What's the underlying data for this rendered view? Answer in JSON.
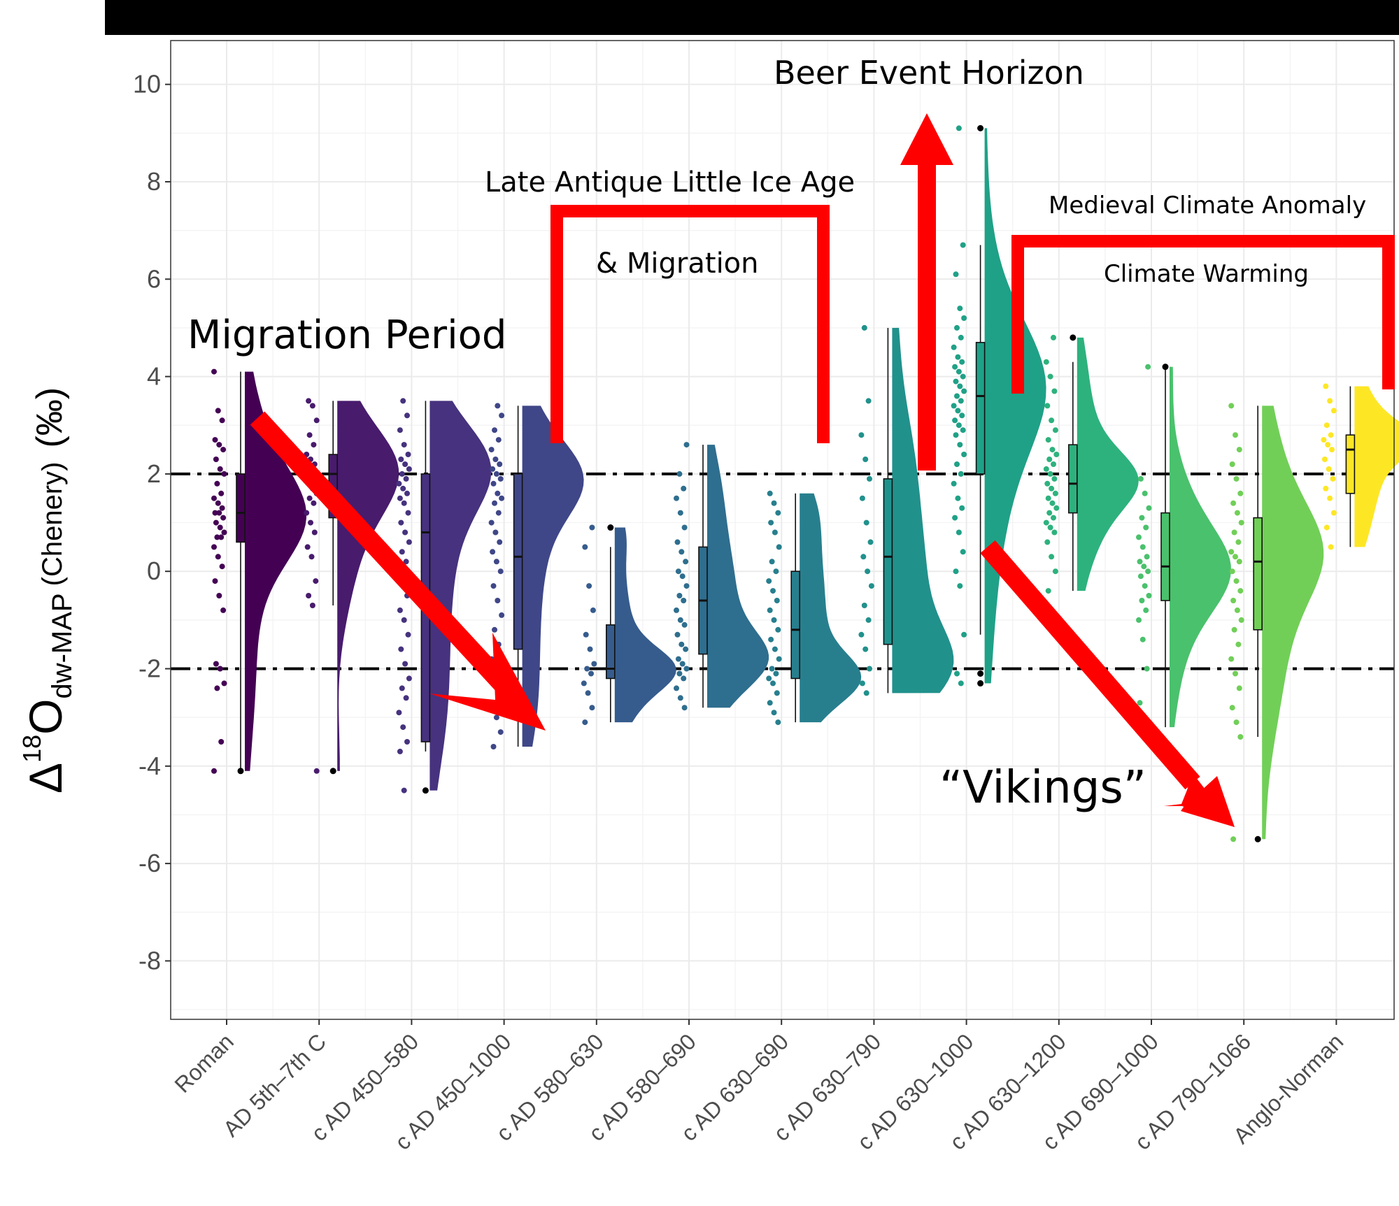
{
  "chart_data": {
    "type": "raincloud",
    "ylabel": {
      "prefix": "Δ",
      "superscript": "18",
      "main": "O",
      "subscript": "dw-MAP",
      "suffix": "(Chenery)",
      "unit": "(‰)"
    },
    "ylim": [
      -9.2,
      10.9
    ],
    "yticks": [
      10,
      8,
      6,
      4,
      2,
      0,
      -2,
      -4,
      -6,
      -8
    ],
    "ytick_labels": [
      "10",
      "8",
      "6",
      "4",
      "2",
      "0",
      "-2",
      "-4",
      "-6",
      "-8"
    ],
    "reference_lines": [
      2,
      -2
    ],
    "categories": [
      "Roman",
      "AD 5th–7th C",
      "c AD 450–580",
      "c AD 450–1000",
      "c AD 580–630",
      "c AD 580–690",
      "c AD 630–690",
      "c AD 630–790",
      "c AD 630–1000",
      "c AD 630–1200",
      "c AD 690–1000",
      "c AD 790–1066",
      "Anglo-Norman"
    ],
    "colors": [
      "#440154",
      "#481b6d",
      "#46327e",
      "#3f4788",
      "#365c8d",
      "#2e6e8e",
      "#277f8e",
      "#21918c",
      "#1fa187",
      "#2db27d",
      "#4ac16d",
      "#71cf57",
      "#fde725"
    ],
    "series": [
      {
        "name": "Roman",
        "min": -4.1,
        "q1": 0.6,
        "median": 1.2,
        "q3": 2.0,
        "max": 4.1,
        "mode": 1.1,
        "outliers": [
          -4.1
        ],
        "points": [
          4.1,
          3.3,
          3.1,
          2.7,
          2.6,
          2.5,
          2.3,
          2.1,
          2.0,
          1.8,
          1.6,
          1.5,
          1.4,
          1.3,
          1.2,
          1.2,
          1.1,
          1.0,
          0.9,
          0.8,
          0.7,
          0.7,
          0.5,
          0.3,
          0.1,
          -0.2,
          -0.5,
          -0.8,
          -1.9,
          -2.0,
          -2.3,
          -2.4,
          -3.5,
          -4.1
        ]
      },
      {
        "name": "AD 5th–7th C",
        "min": -0.7,
        "q1": 1.1,
        "median": 2.0,
        "q3": 2.4,
        "max": 3.5,
        "mode": 2.1,
        "outliers": [
          -4.1
        ],
        "points": [
          3.5,
          3.4,
          3.1,
          2.8,
          2.6,
          2.4,
          2.3,
          2.2,
          2.1,
          2.0,
          1.9,
          1.8,
          1.7,
          1.6,
          1.5,
          1.4,
          1.2,
          1.0,
          0.8,
          0.5,
          0.3,
          -0.2,
          -0.5,
          -0.7,
          -4.1
        ]
      },
      {
        "name": "c AD 450–580",
        "min": -3.7,
        "q1": -3.5,
        "median": 0.8,
        "q3": 2.0,
        "max": 3.5,
        "mode": 2.2,
        "outliers": [
          -4.5
        ],
        "points": [
          3.5,
          3.2,
          2.9,
          2.6,
          2.4,
          2.3,
          2.2,
          2.1,
          2.0,
          1.9,
          1.8,
          1.7,
          1.6,
          1.5,
          1.4,
          1.2,
          1.0,
          0.8,
          0.6,
          0.4,
          0.2,
          0.0,
          -0.3,
          -0.5,
          -0.8,
          -1.0,
          -1.3,
          -1.6,
          -1.9,
          -2.2,
          -2.4,
          -2.6,
          -2.9,
          -3.2,
          -3.5,
          -3.7,
          -4.5
        ]
      },
      {
        "name": "c AD 450–1000",
        "min": -3.6,
        "q1": -1.6,
        "median": 0.3,
        "q3": 2.0,
        "max": 3.4,
        "mode": 1.9,
        "outliers": [],
        "points": [
          3.4,
          3.2,
          2.9,
          2.7,
          2.5,
          2.3,
          2.2,
          2.1,
          2.0,
          1.9,
          1.8,
          1.6,
          1.5,
          1.4,
          1.2,
          1.0,
          0.8,
          0.6,
          0.4,
          0.2,
          0.0,
          -0.3,
          -0.6,
          -0.9,
          -1.2,
          -1.5,
          -1.8,
          -2.1,
          -2.4,
          -2.7,
          -3.0,
          -3.3,
          -3.6
        ]
      },
      {
        "name": "c AD 580–630",
        "min": -3.1,
        "q1": -2.2,
        "median": -2.0,
        "q3": -1.1,
        "max": 0.5,
        "mode": -2.0,
        "outliers": [
          0.9
        ],
        "points": [
          0.9,
          0.5,
          -0.3,
          -0.8,
          -1.3,
          -1.6,
          -1.9,
          -2.0,
          -2.1,
          -2.3,
          -2.5,
          -2.8,
          -3.1
        ]
      },
      {
        "name": "c AD 580–690",
        "min": -2.8,
        "q1": -1.7,
        "median": -0.6,
        "q3": 0.5,
        "max": 2.6,
        "mode": -1.8,
        "outliers": [],
        "points": [
          2.6,
          2.0,
          1.7,
          1.5,
          1.2,
          0.9,
          0.6,
          0.4,
          0.2,
          0.0,
          -0.1,
          -0.3,
          -0.5,
          -0.6,
          -0.8,
          -1.0,
          -1.1,
          -1.3,
          -1.5,
          -1.6,
          -1.8,
          -1.9,
          -2.0,
          -2.1,
          -2.2,
          -2.4,
          -2.6,
          -2.8
        ]
      },
      {
        "name": "c AD 630–690",
        "min": -3.1,
        "q1": -2.2,
        "median": -1.2,
        "q3": 0.0,
        "max": 1.6,
        "mode": -2.2,
        "outliers": [],
        "points": [
          1.6,
          1.4,
          1.2,
          1.0,
          0.8,
          0.5,
          0.2,
          0.0,
          -0.2,
          -0.4,
          -0.6,
          -0.8,
          -1.0,
          -1.2,
          -1.4,
          -1.6,
          -1.8,
          -2.0,
          -2.1,
          -2.2,
          -2.3,
          -2.5,
          -2.7,
          -2.9,
          -3.1
        ]
      },
      {
        "name": "c AD 630–790",
        "min": -2.5,
        "q1": -1.5,
        "median": 0.3,
        "q3": 1.9,
        "max": 5.0,
        "mode": -2.0,
        "outliers": [],
        "points": [
          5.0,
          3.5,
          2.8,
          2.3,
          1.9,
          1.5,
          1.0,
          0.6,
          0.3,
          0.0,
          -0.3,
          -0.7,
          -1.0,
          -1.3,
          -1.6,
          -2.0,
          -2.3,
          -2.5
        ]
      },
      {
        "name": "c AD 630–1000",
        "min": -1.3,
        "q1": 2.0,
        "median": 3.6,
        "q3": 4.7,
        "max": 6.7,
        "mode": 3.9,
        "outliers": [
          9.1,
          -2.1,
          -2.3
        ],
        "points": [
          9.1,
          6.7,
          6.1,
          5.4,
          5.2,
          5.0,
          4.8,
          4.6,
          4.4,
          4.3,
          4.2,
          4.1,
          4.0,
          3.9,
          3.8,
          3.7,
          3.6,
          3.5,
          3.4,
          3.3,
          3.2,
          3.1,
          3.0,
          2.9,
          2.8,
          2.6,
          2.4,
          2.2,
          2.0,
          1.8,
          1.5,
          1.3,
          1.1,
          0.8,
          0.4,
          0.0,
          -0.3,
          -1.3,
          -2.1,
          -2.3
        ]
      },
      {
        "name": "c AD 630–1200",
        "min": -0.4,
        "q1": 1.2,
        "median": 1.8,
        "q3": 2.6,
        "max": 4.3,
        "mode": 1.9,
        "outliers": [
          4.8
        ],
        "points": [
          4.8,
          4.3,
          4.0,
          3.7,
          3.4,
          3.1,
          2.9,
          2.7,
          2.5,
          2.4,
          2.3,
          2.2,
          2.1,
          2.0,
          1.9,
          1.8,
          1.7,
          1.6,
          1.5,
          1.4,
          1.3,
          1.2,
          1.1,
          1.0,
          0.9,
          0.8,
          0.6,
          0.3,
          0.0,
          -0.4
        ]
      },
      {
        "name": "c AD 690–1000",
        "min": -3.2,
        "q1": -0.6,
        "median": 0.1,
        "q3": 1.2,
        "max": 4.2,
        "mode": 0.0,
        "outliers": [
          4.2
        ],
        "points": [
          4.2,
          1.9,
          1.6,
          1.3,
          1.1,
          0.9,
          0.7,
          0.5,
          0.3,
          0.2,
          0.1,
          0.0,
          -0.1,
          -0.3,
          -0.5,
          -0.6,
          -0.8,
          -1.0,
          -1.4,
          -2.0,
          -2.7
        ]
      },
      {
        "name": "c AD 790–1066",
        "min": -3.4,
        "q1": -1.2,
        "median": 0.2,
        "q3": 1.1,
        "max": 3.4,
        "mode": 0.4,
        "outliers": [
          -5.5
        ],
        "points": [
          3.4,
          2.8,
          2.5,
          2.2,
          1.9,
          1.6,
          1.4,
          1.2,
          1.0,
          0.8,
          0.6,
          0.4,
          0.3,
          0.2,
          0.0,
          -0.2,
          -0.4,
          -0.6,
          -0.8,
          -1.0,
          -1.2,
          -1.5,
          -1.8,
          -2.1,
          -2.4,
          -2.8,
          -3.1,
          -3.4,
          -5.5
        ]
      },
      {
        "name": "Anglo-Norman",
        "min": 0.5,
        "q1": 1.6,
        "median": 2.5,
        "q3": 2.8,
        "max": 3.8,
        "mode": 2.7,
        "outliers": [],
        "points": [
          3.8,
          3.5,
          3.3,
          3.0,
          2.8,
          2.7,
          2.6,
          2.5,
          2.3,
          2.1,
          1.9,
          1.7,
          1.5,
          1.2,
          0.9,
          0.5
        ]
      }
    ],
    "annotations": [
      {
        "id": "migration-period",
        "text": "Migration Period"
      },
      {
        "id": "late-antique",
        "text": "Late Antique Little Ice Age"
      },
      {
        "id": "and-migration",
        "text": "& Migration"
      },
      {
        "id": "beer-event",
        "text": "Beer Event Horizon"
      },
      {
        "id": "medieval-climate",
        "text": "Medieval Climate Anomaly"
      },
      {
        "id": "climate-warming",
        "text": "Climate Warming"
      },
      {
        "id": "vikings",
        "text": "“Vikings”"
      }
    ]
  }
}
